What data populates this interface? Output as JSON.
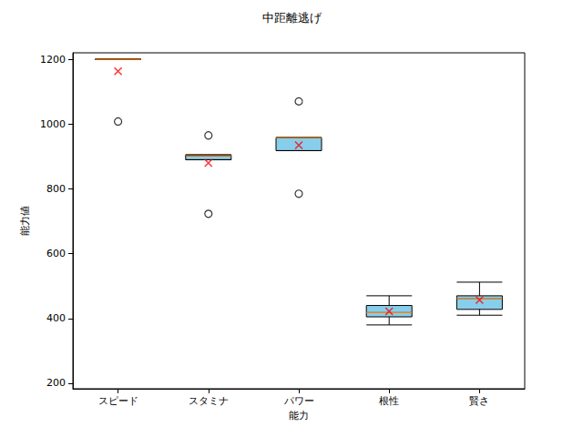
{
  "chart_data": {
    "type": "boxplot",
    "title": "中距離逃げ",
    "x_label": "能力",
    "y_label": "能力値",
    "categories": [
      "スピード",
      "スタミナ",
      "パワー",
      "根性",
      "賢さ"
    ],
    "boxes": [
      {
        "whislo": 1200,
        "q1": 1200,
        "med": 1200,
        "q3": 1200,
        "whishi": 1200,
        "fliers": [
          1008
        ],
        "mean": 1163
      },
      {
        "whislo": 890,
        "q1": 890,
        "med": 902,
        "q3": 905,
        "whishi": 905,
        "fliers": [
          965,
          723
        ],
        "mean": 880
      },
      {
        "whislo": 918,
        "q1": 918,
        "med": 958,
        "q3": 958,
        "whishi": 958,
        "fliers": [
          1070,
          785
        ],
        "mean": 935
      },
      {
        "whislo": 380,
        "q1": 405,
        "med": 418,
        "q3": 440,
        "whishi": 470,
        "fliers": [],
        "mean": 422
      },
      {
        "whislo": 410,
        "q1": 428,
        "med": 462,
        "q3": 470,
        "whishi": 512,
        "fliers": [],
        "mean": 457
      }
    ],
    "color": "#87ceeb",
    "ylim": [
      183,
      1220
    ],
    "yticks": [
      200,
      400,
      600,
      800,
      1000,
      1200
    ],
    "grid": false
  }
}
